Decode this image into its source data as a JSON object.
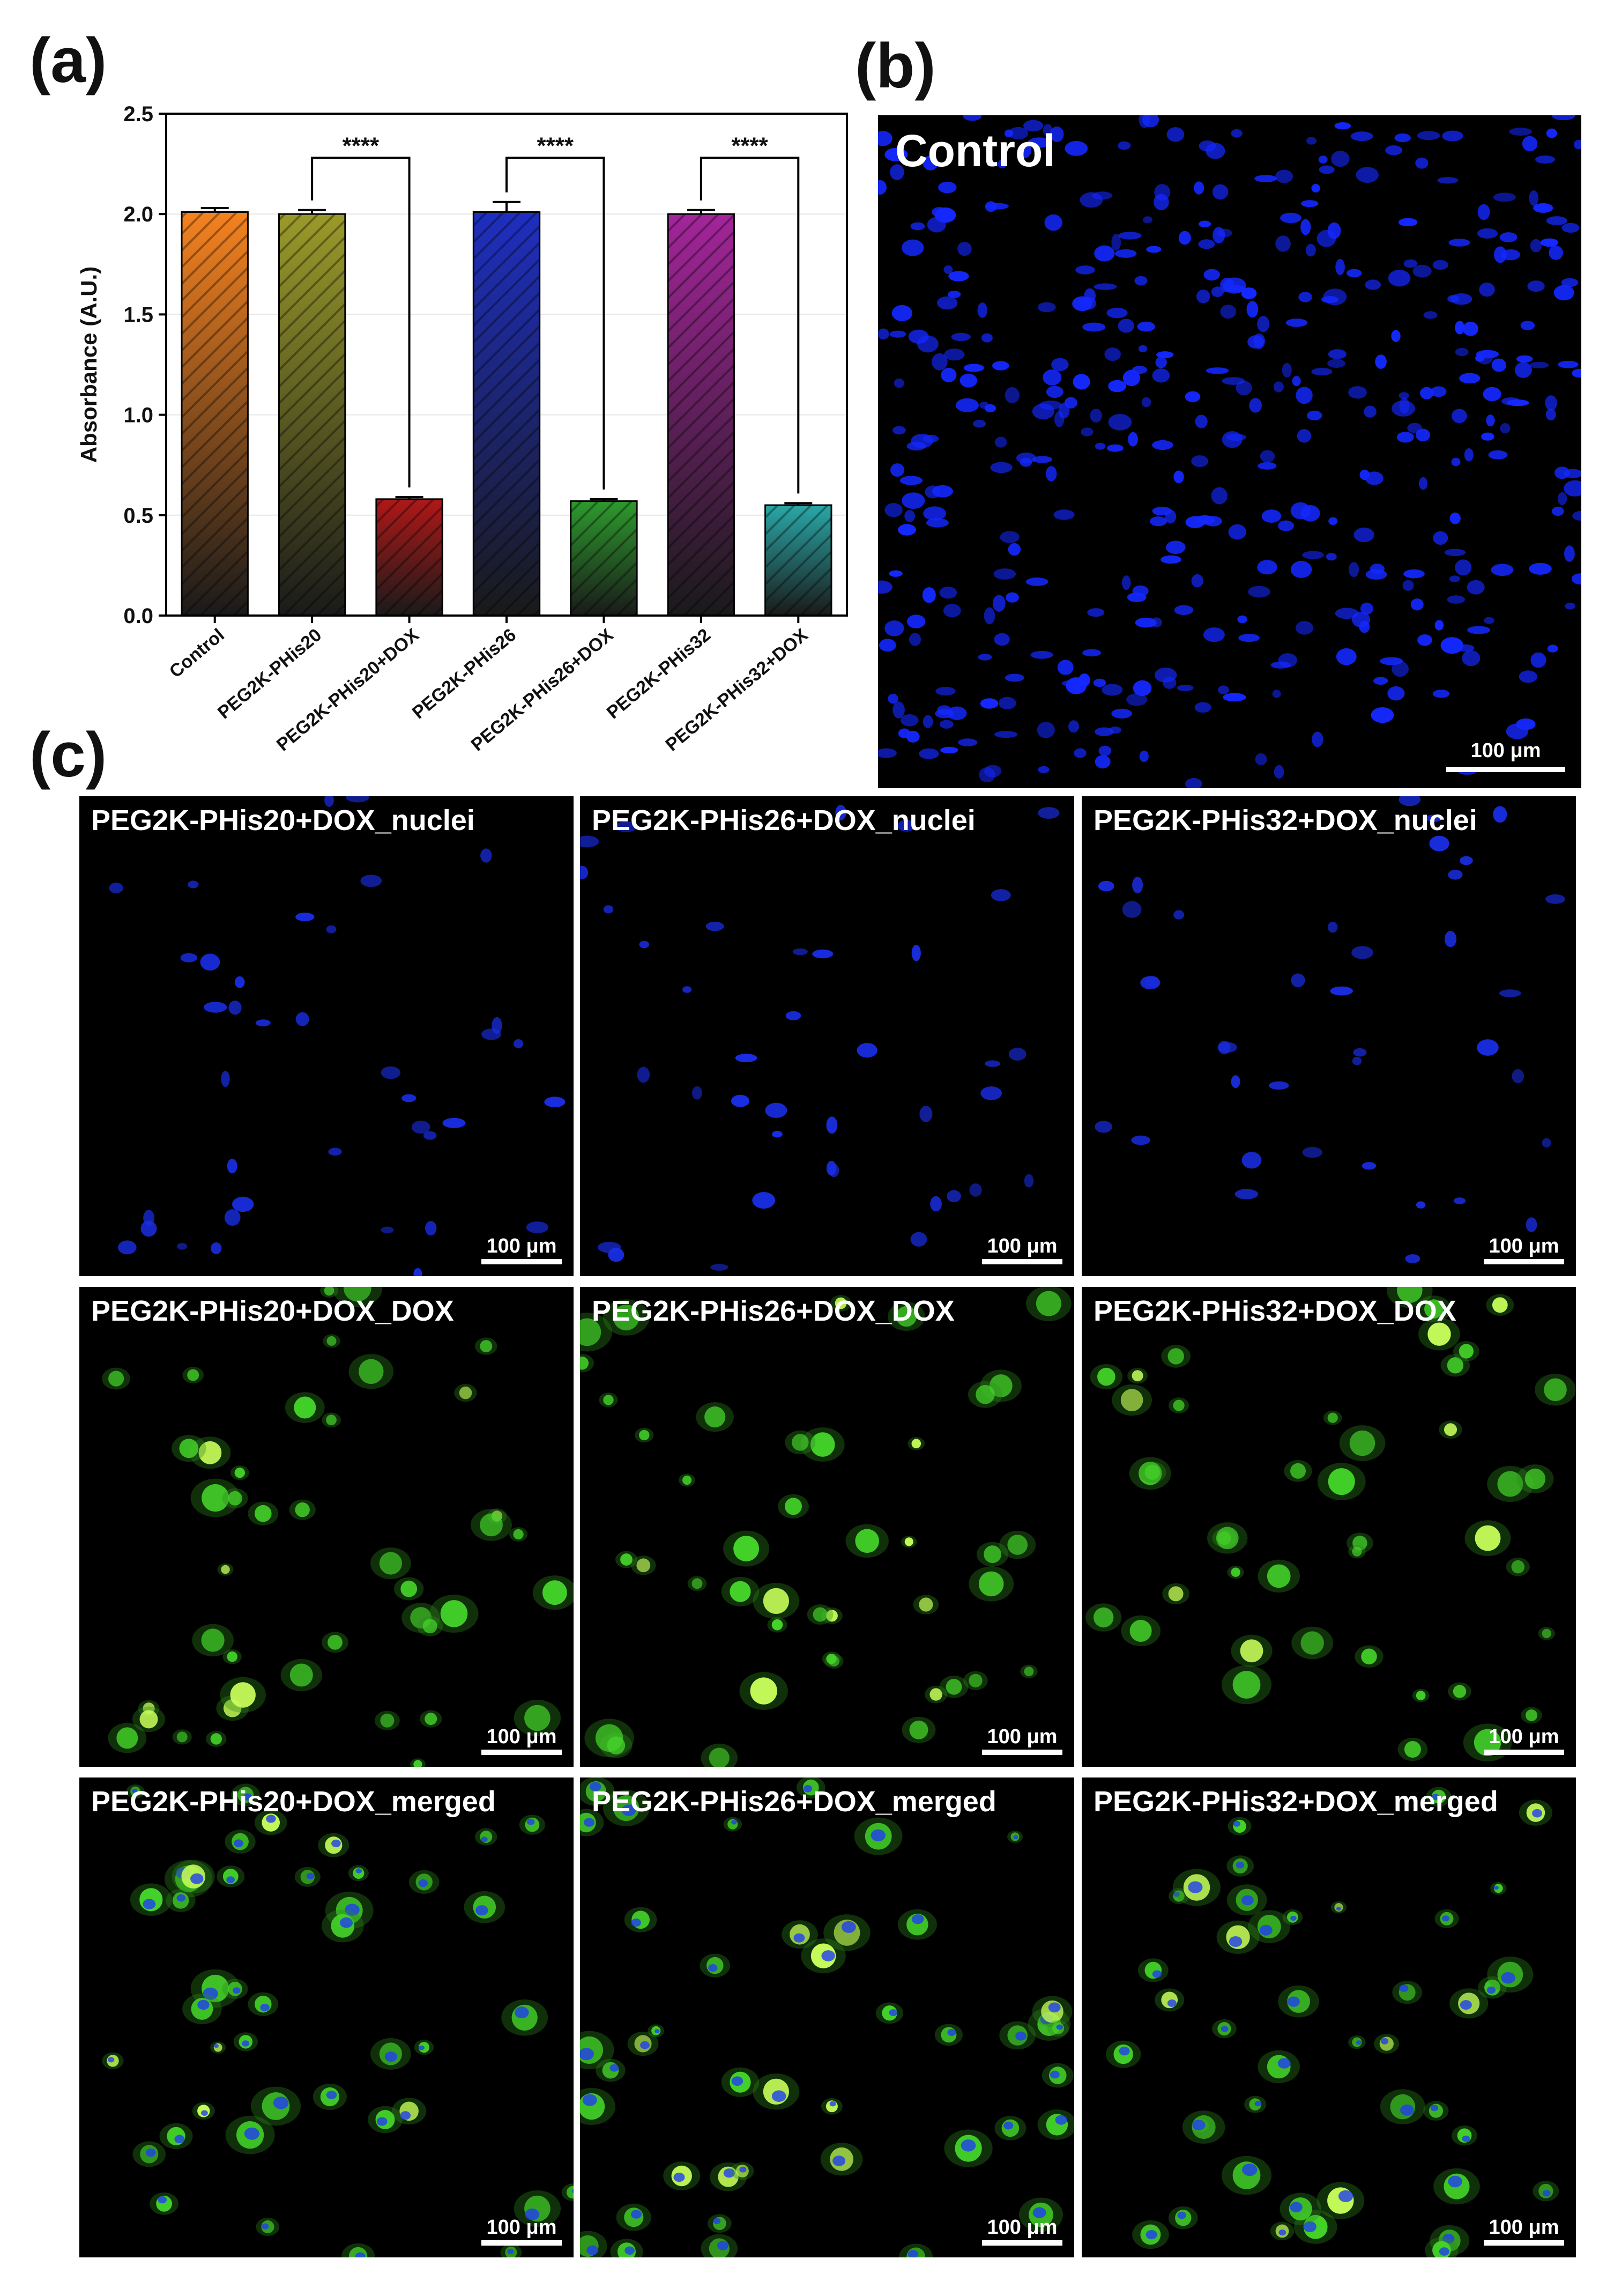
{
  "panel_labels": {
    "a": "(a)",
    "b": "(b)",
    "c": "(c)"
  },
  "chart_data": {
    "type": "bar",
    "ylabel": "Absorbance (A.U.)",
    "ylim": [
      0,
      2.5
    ],
    "yticks": [
      "0.0",
      "0.5",
      "1.0",
      "1.5",
      "2.0",
      "2.5"
    ],
    "grid": true,
    "categories": [
      "Control",
      "PEG2K-PHis20",
      "PEG2K-PHis20+DOX",
      "PEG2K-PHis26",
      "PEG2K-PHis26+DOX",
      "PEG2K-PHis32",
      "PEG2K-PHis32+DOX"
    ],
    "values": [
      2.01,
      2.0,
      0.58,
      2.01,
      0.57,
      2.0,
      0.55
    ],
    "errors": [
      0.02,
      0.02,
      0.01,
      0.05,
      0.01,
      0.02,
      0.01
    ],
    "bar_colors": [
      "#f5821f",
      "#9a9a2a",
      "#b01818",
      "#1e2fc0",
      "#2d9a2d",
      "#a3259a",
      "#2aa7a7"
    ],
    "significance": [
      {
        "from": 1,
        "to": 2,
        "label": "****"
      },
      {
        "from": 3,
        "to": 4,
        "label": "****"
      },
      {
        "from": 5,
        "to": 6,
        "label": "****"
      }
    ]
  },
  "panel_b": {
    "title": "Control",
    "scale": "100 μm"
  },
  "panel_c": {
    "scale": "100 μm",
    "rows": [
      [
        "PEG2K-PHis20+DOX_nuclei",
        "PEG2K-PHis26+DOX_nuclei",
        "PEG2K-PHis32+DOX_nuclei"
      ],
      [
        "PEG2K-PHis20+DOX_DOX",
        "PEG2K-PHis26+DOX_DOX",
        "PEG2K-PHis32+DOX_DOX"
      ],
      [
        "PEG2K-PHis20+DOX_merged",
        "PEG2K-PHis26+DOX_merged",
        "PEG2K-PHis32+DOX_merged"
      ]
    ]
  }
}
